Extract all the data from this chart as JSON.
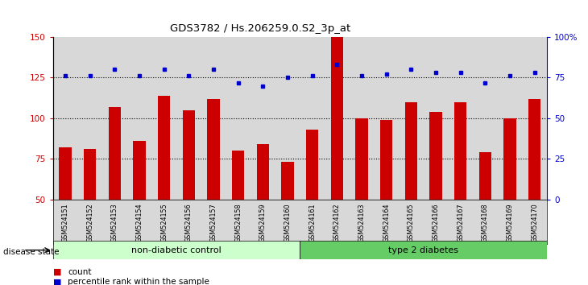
{
  "title": "GDS3782 / Hs.206259.0.S2_3p_at",
  "samples": [
    "GSM524151",
    "GSM524152",
    "GSM524153",
    "GSM524154",
    "GSM524155",
    "GSM524156",
    "GSM524157",
    "GSM524158",
    "GSM524159",
    "GSM524160",
    "GSM524161",
    "GSM524162",
    "GSM524163",
    "GSM524164",
    "GSM524165",
    "GSM524166",
    "GSM524167",
    "GSM524168",
    "GSM524169",
    "GSM524170"
  ],
  "bar_values": [
    82,
    81,
    107,
    86,
    114,
    105,
    112,
    80,
    84,
    73,
    93,
    150,
    100,
    99,
    110,
    104,
    110,
    79,
    100,
    112
  ],
  "dot_values": [
    126,
    126,
    130,
    126,
    130,
    126,
    130,
    122,
    120,
    125,
    126,
    133,
    126,
    127,
    130,
    128,
    128,
    122,
    126,
    128
  ],
  "bar_color": "#cc0000",
  "dot_color": "#0000cc",
  "left_ylim": [
    50,
    150
  ],
  "left_yticks": [
    50,
    75,
    100,
    125,
    150
  ],
  "right_ylim": [
    0,
    100
  ],
  "right_yticks": [
    0,
    25,
    50,
    75,
    100
  ],
  "right_yticklabels": [
    "0",
    "25",
    "50",
    "75",
    "100%"
  ],
  "hlines": [
    75,
    100,
    125
  ],
  "non_diabetic_count": 10,
  "type2_count": 10,
  "non_diabetic_label": "non-diabetic control",
  "type2_label": "type 2 diabetes",
  "disease_state_label": "disease state",
  "legend_count_label": "count",
  "legend_pct_label": "percentile rank within the sample",
  "bg_bar_color": "#d8d8d8",
  "non_diabetic_fill": "#ccffcc",
  "type2_fill": "#66cc66"
}
